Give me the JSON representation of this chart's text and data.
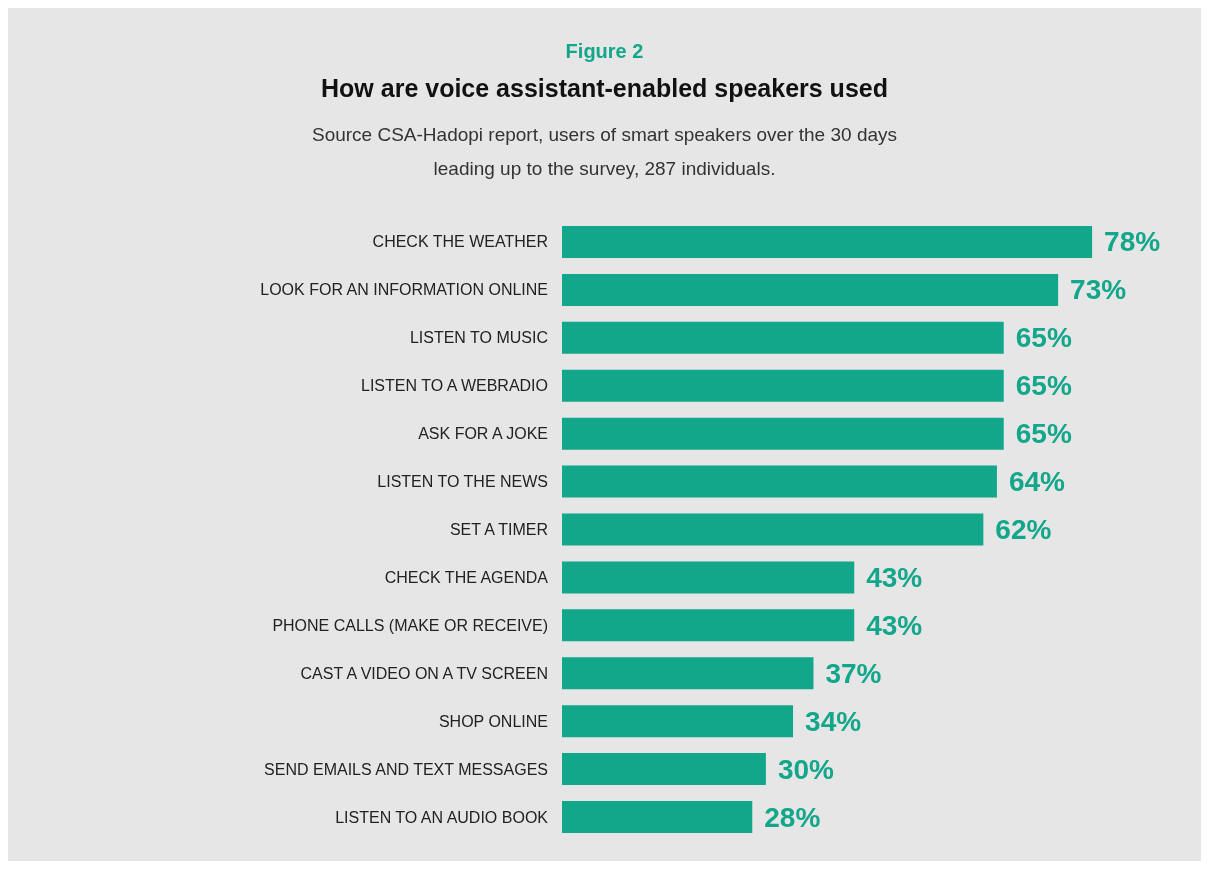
{
  "chart_data": {
    "type": "bar",
    "orientation": "horizontal",
    "title": "How are voice assistant-enabled speakers used",
    "subtitle": "Source CSA-Hadopi report, users of smart speakers over the 30 days\nleading up to the survey, 287 individuals.",
    "annotations": [
      "Figure 2"
    ],
    "categories": [
      "CHECK THE WEATHER",
      "LOOK FOR AN INFORMATION ONLINE",
      "LISTEN TO MUSIC",
      "LISTEN TO A WEBRADIO",
      "ASK FOR A JOKE",
      "LISTEN TO THE NEWS",
      "SET A TIMER",
      "CHECK THE AGENDA",
      "PHONE CALLS (MAKE OR RECEIVE)",
      "CAST A VIDEO ON A TV SCREEN",
      "SHOP ONLINE",
      "SEND EMAILS AND TEXT MESSAGES",
      "LISTEN TO AN AUDIO BOOK"
    ],
    "values": [
      78,
      73,
      65,
      65,
      65,
      64,
      62,
      43,
      43,
      37,
      34,
      30,
      28
    ],
    "value_labels": [
      "78%",
      "73%",
      "65%",
      "65%",
      "65%",
      "64%",
      "62%",
      "43%",
      "43%",
      "37%",
      "34%",
      "30%",
      "28%"
    ],
    "color": "#12a68a"
  }
}
